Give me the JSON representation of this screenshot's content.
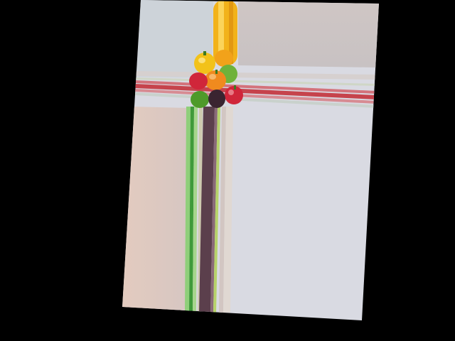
{
  "image": {
    "description_name": "rotated-photo-peppers-with-streaked-background",
    "colors": {
      "background": "#000000",
      "card_light": "#d9dbe3",
      "card_top": "#c9c2bf",
      "card_left": "#dcc8bf",
      "red_streak": "#c6434c",
      "green_streak": "#5aa83e",
      "purple_streak": "#5b3f4c",
      "yellow_pepper": "#f2b21a",
      "orange_pepper": "#f08a1e",
      "red_pepper": "#d0263a",
      "green_pepper": "#4e9a2a",
      "dark_pepper": "#3a2430"
    }
  }
}
